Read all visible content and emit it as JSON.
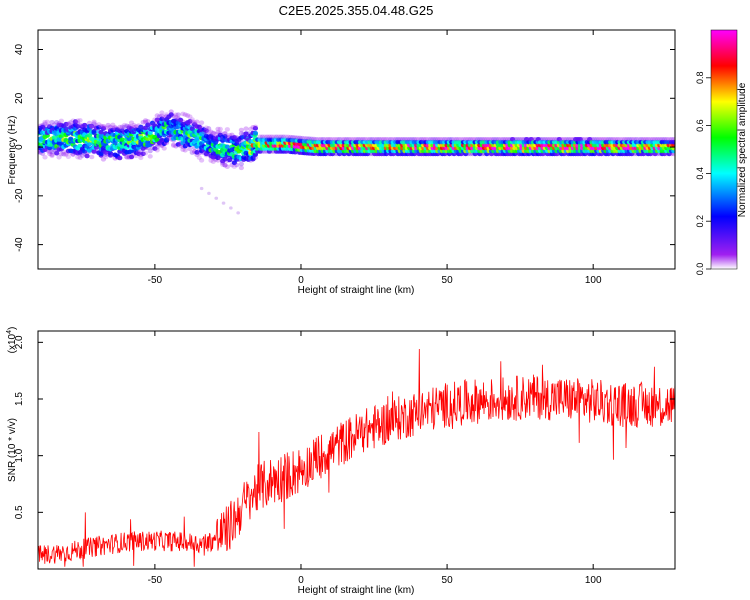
{
  "title": "C2E5.2025.355.04.48.G25",
  "chart_data": [
    {
      "type": "heatmap",
      "xlabel": "Height of straight line (km)",
      "ylabel": "Frequency (Hz)",
      "xlim": [
        -90,
        128
      ],
      "ylim": [
        -50,
        48
      ],
      "xticks": [
        -50,
        0,
        50,
        100
      ],
      "yticks": [
        -40,
        -20,
        0,
        20,
        40
      ],
      "colorbar": {
        "label": "Normalized spectral amplitude",
        "range": [
          0,
          1
        ],
        "ticks": [
          "0.0",
          "0.2",
          "0.4",
          "0.6",
          "0.8"
        ],
        "colors": [
          "#ffffff",
          "#a020f0",
          "#0000ff",
          "#00ffff",
          "#00ff00",
          "#ffff00",
          "#ff0000",
          "#ff00ff"
        ]
      },
      "ridge": [
        {
          "x": -88,
          "y": 3,
          "amp": 0.45
        },
        {
          "x": -80,
          "y": 4,
          "amp": 0.5
        },
        {
          "x": -72,
          "y": 3,
          "amp": 0.5
        },
        {
          "x": -62,
          "y": 2,
          "amp": 0.45
        },
        {
          "x": -52,
          "y": 4,
          "amp": 0.5
        },
        {
          "x": -45,
          "y": 8,
          "amp": 0.4
        },
        {
          "x": -38,
          "y": 5,
          "amp": 0.45
        },
        {
          "x": -30,
          "y": 0,
          "amp": 0.4
        },
        {
          "x": -22,
          "y": -1,
          "amp": 0.45
        },
        {
          "x": -15,
          "y": 1,
          "amp": 0.65
        },
        {
          "x": -5,
          "y": 1,
          "amp": 0.75
        },
        {
          "x": 5,
          "y": 0,
          "amp": 0.8
        },
        {
          "x": 20,
          "y": 0,
          "amp": 0.75
        },
        {
          "x": 40,
          "y": 0,
          "amp": 0.8
        },
        {
          "x": 60,
          "y": 0,
          "amp": 0.8
        },
        {
          "x": 75,
          "y": 0,
          "amp": 0.9
        },
        {
          "x": 90,
          "y": 0,
          "amp": 0.85
        },
        {
          "x": 110,
          "y": 0,
          "amp": 0.8
        },
        {
          "x": 128,
          "y": 0,
          "amp": 0.7
        }
      ]
    },
    {
      "type": "line",
      "xlabel": "Height of straight line (km)",
      "ylabel": "SNR (10 * v/v)",
      "yscale_label": "(x10",
      "yscale_exp": "4",
      "yscale_suffix": ")",
      "xlim": [
        -90,
        128
      ],
      "ylim": [
        0.0,
        2.1
      ],
      "xticks": [
        -50,
        0,
        50,
        100
      ],
      "yticks": [
        0.5,
        1.0,
        1.5,
        2.0
      ],
      "series": [
        {
          "color": "#ff0000",
          "trend_x": [
            -90,
            -80,
            -70,
            -60,
            -50,
            -40,
            -35,
            -30,
            -25,
            -20,
            -15,
            -10,
            -5,
            0,
            5,
            10,
            20,
            30,
            40,
            50,
            60,
            70,
            80,
            90,
            100,
            110,
            120,
            128
          ],
          "trend_y": [
            0.12,
            0.15,
            0.2,
            0.24,
            0.25,
            0.24,
            0.22,
            0.25,
            0.35,
            0.55,
            0.7,
            0.78,
            0.82,
            0.88,
            0.97,
            1.05,
            1.2,
            1.3,
            1.38,
            1.45,
            1.48,
            1.5,
            1.52,
            1.5,
            1.48,
            1.45,
            1.45,
            1.45
          ]
        }
      ]
    }
  ]
}
